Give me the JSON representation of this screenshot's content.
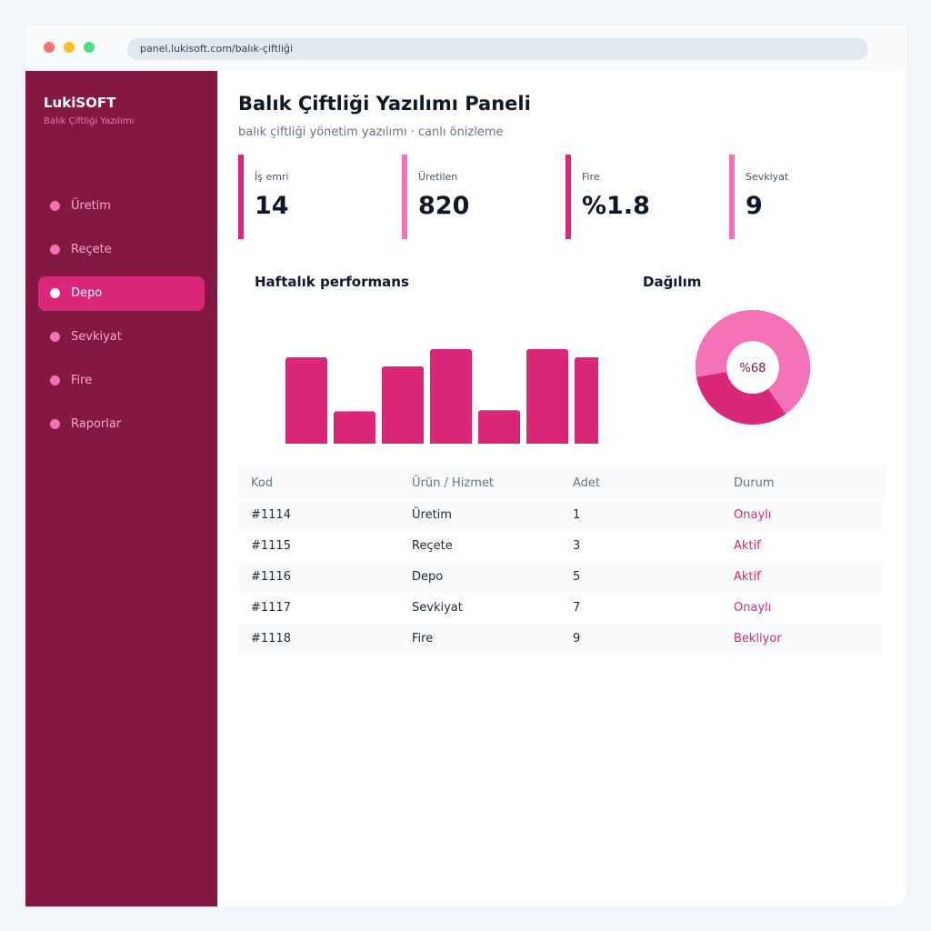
{
  "browser": {
    "url": "panel.lukisoft.com/balık-çiftliği"
  },
  "sidebar": {
    "brand": "LukiSOFT",
    "tagline": "Balık Çiftliği Yazılımı",
    "items": [
      "Üretim",
      "Reçete",
      "Depo",
      "Sevkiyat",
      "Fire",
      "Raporlar"
    ]
  },
  "header": {
    "title": "Balık Çiftliği Yazılımı Paneli",
    "subtitle": "balık çiftliği yönetim yazılımı · canlı önizleme"
  },
  "kpis": [
    {
      "label": "İş emri",
      "value": "14"
    },
    {
      "label": "Üretilen",
      "value": "820"
    },
    {
      "label": "Fire",
      "value": "%1.8"
    },
    {
      "label": "Sevkiyat",
      "value": "9"
    }
  ],
  "chart_data": [
    {
      "type": "bar",
      "title": "Haftalık performans",
      "values": [
        92,
        39,
        83,
        100,
        40,
        100,
        92
      ],
      "color": "#db2777"
    },
    {
      "type": "pie",
      "title": "Dağılım",
      "values": [
        68
      ],
      "value_labels": [
        "%68"
      ],
      "colors": [
        "#f472b6",
        "#db2777"
      ]
    }
  ],
  "table": {
    "columns": [
      "Kod",
      "Ürün / Hizmet",
      "Adet",
      "Durum"
    ],
    "rows": [
      [
        "#1114",
        "Üretim",
        "1",
        "Onaylı"
      ],
      [
        "#1115",
        "Reçete",
        "3",
        "Aktif"
      ],
      [
        "#1116",
        "Depo",
        "5",
        "Aktif"
      ],
      [
        "#1117",
        "Sevkiyat",
        "7",
        "Onaylı"
      ],
      [
        "#1118",
        "Fire",
        "9",
        "Bekliyor"
      ]
    ]
  }
}
